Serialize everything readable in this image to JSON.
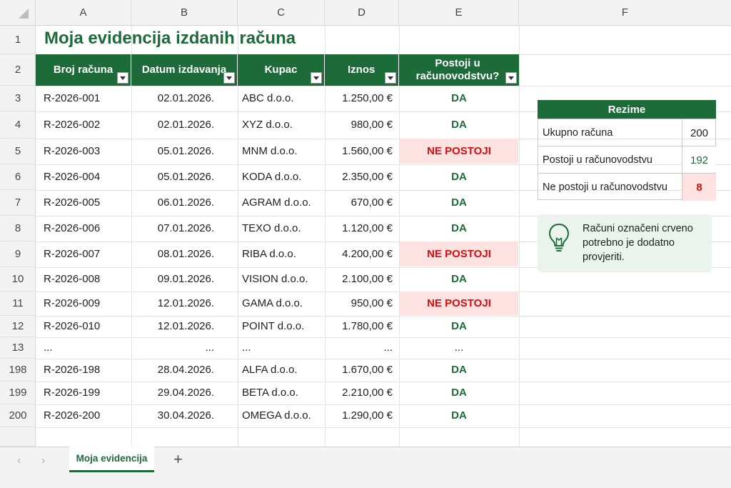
{
  "columns": [
    "A",
    "B",
    "C",
    "D",
    "E",
    "F"
  ],
  "title": "Moja evidencija izdanih računa",
  "table": {
    "headers": [
      "Broj računa",
      "Datum izdavanja",
      "Kupac",
      "Iznos",
      "Postoji u računovodstvu?"
    ],
    "rows": [
      {
        "row": "3",
        "broj": "R-2026-001",
        "datum": "02.01.2026.",
        "kupac": "ABC d.o.o.",
        "iznos": "1.250,00 €",
        "status": "DA",
        "ok": true
      },
      {
        "row": "4",
        "broj": "R-2026-002",
        "datum": "02.01.2026.",
        "kupac": "XYZ d.o.o.",
        "iznos": "980,00 €",
        "status": "DA",
        "ok": true
      },
      {
        "row": "5",
        "broj": "R-2026-003",
        "datum": "05.01.2026.",
        "kupac": "MNM d.o.o.",
        "iznos": "1.560,00 €",
        "status": "NE POSTOJI",
        "ok": false
      },
      {
        "row": "6",
        "broj": "R-2026-004",
        "datum": "05.01.2026.",
        "kupac": "KODA d.o.o.",
        "iznos": "2.350,00 €",
        "status": "DA",
        "ok": true
      },
      {
        "row": "7",
        "broj": "R-2026-005",
        "datum": "06.01.2026.",
        "kupac": "AGRAM d.o.o.",
        "iznos": "670,00 €",
        "status": "DA",
        "ok": true
      },
      {
        "row": "8",
        "broj": "R-2026-006",
        "datum": "07.01.2026.",
        "kupac": "TEXO d.o.o.",
        "iznos": "1.120,00 €",
        "status": "DA",
        "ok": true
      },
      {
        "row": "9",
        "broj": "R-2026-007",
        "datum": "08.01.2026.",
        "kupac": "RIBA d.o.o.",
        "iznos": "4.200,00 €",
        "status": "NE POSTOJI",
        "ok": false
      },
      {
        "row": "10",
        "broj": "R-2026-008",
        "datum": "09.01.2026.",
        "kupac": "VISION d.o.o.",
        "iznos": "2.100,00 €",
        "status": "DA",
        "ok": true
      },
      {
        "row": "11",
        "broj": "R-2026-009",
        "datum": "12.01.2026.",
        "kupac": "GAMA d.o.o.",
        "iznos": "950,00 €",
        "status": "NE POSTOJI",
        "ok": false
      },
      {
        "row": "12",
        "broj": "R-2026-010",
        "datum": "12.01.2026.",
        "kupac": "POINT d.o.o.",
        "iznos": "1.780,00 €",
        "status": "DA",
        "ok": true
      },
      {
        "row": "13",
        "broj": "...",
        "datum": "...",
        "kupac": "...",
        "iznos": "...",
        "status": "...",
        "ok": null
      },
      {
        "row": "198",
        "broj": "R-2026-198",
        "datum": "28.04.2026.",
        "kupac": "ALFA d.o.o.",
        "iznos": "1.670,00 €",
        "status": "DA",
        "ok": true
      },
      {
        "row": "199",
        "broj": "R-2026-199",
        "datum": "29.04.2026.",
        "kupac": "BETA d.o.o.",
        "iznos": "2.210,00 €",
        "status": "DA",
        "ok": true
      },
      {
        "row": "200",
        "broj": "R-2026-200",
        "datum": "30.04.2026.",
        "kupac": "OMEGA d.o.o.",
        "iznos": "1.290,00 €",
        "status": "DA",
        "ok": true
      }
    ]
  },
  "summary": {
    "title": "Rezime",
    "rows": [
      {
        "label": "Ukupno računa",
        "value": "200"
      },
      {
        "label": "Postoji u računovodstvu",
        "value": "192"
      },
      {
        "label": "Ne postoji u računovodstvu",
        "value": "8"
      }
    ]
  },
  "tip": {
    "icon": "lightbulb-icon",
    "text": "Računi označeni crveno potrebno je dodatno provjeriti."
  },
  "sheet_tabs": {
    "active": "Moja evidencija",
    "add_label": "+",
    "prev_label": "‹",
    "next_label": "›"
  },
  "colors": {
    "accent_green": "#1e6b3a",
    "error_red": "#d40f0f",
    "error_fill": "#fde2e2",
    "tip_fill": "#eaf3ec"
  }
}
